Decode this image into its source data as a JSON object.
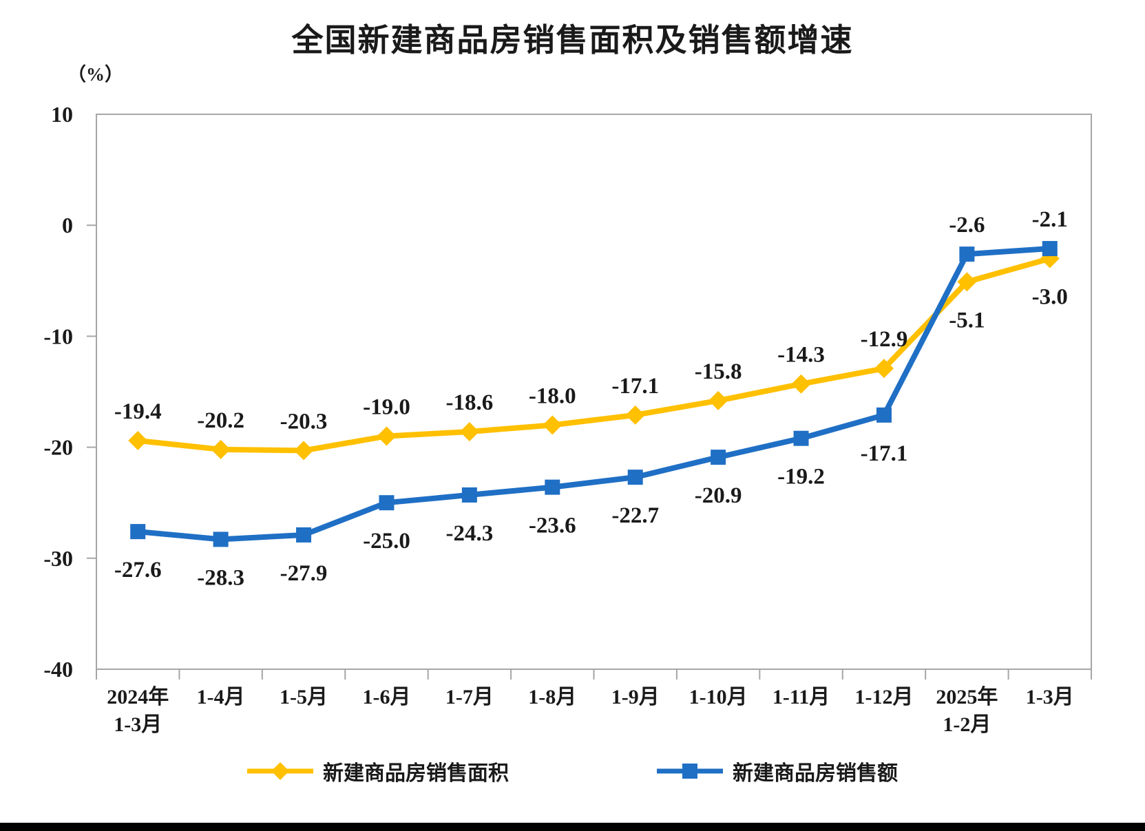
{
  "page": {
    "title": "全国新建商品房销售面积及销售额增速",
    "y_axis_unit": "（%）"
  },
  "chart_data": {
    "type": "line",
    "title": "全国新建商品房销售面积及销售额增速",
    "ylabel": "（%）",
    "xlabel": "",
    "ylim": [
      -40,
      10
    ],
    "yticks": [
      10,
      0,
      -10,
      -20,
      -30,
      -40
    ],
    "grid": false,
    "legend_position": "bottom",
    "axis_color": "#a6a6a6",
    "text_color": "#1a1a1a",
    "categories": [
      "2024年\n1-3月",
      "1-4月",
      "1-5月",
      "1-6月",
      "1-7月",
      "1-8月",
      "1-9月",
      "1-10月",
      "1-11月",
      "1-12月",
      "2025年\n1-2月",
      "1-3月"
    ],
    "series": [
      {
        "name": "新建商品房销售面积",
        "color": "#FFC000",
        "marker": "diamond",
        "values": [
          -19.4,
          -20.2,
          -20.3,
          -19.0,
          -18.6,
          -18.0,
          -17.1,
          -15.8,
          -14.3,
          -12.9,
          -5.1,
          -3.0
        ],
        "label_side_default": "above",
        "label_side_overrides": {
          "10": "below",
          "11": "below"
        }
      },
      {
        "name": "新建商品房销售额",
        "color": "#1F6FC5",
        "marker": "square",
        "values": [
          -27.6,
          -28.3,
          -27.9,
          -25.0,
          -24.3,
          -23.6,
          -22.7,
          -20.9,
          -19.2,
          -17.1,
          -2.6,
          -2.1
        ],
        "label_side_default": "below",
        "label_side_overrides": {
          "10": "above",
          "11": "above"
        }
      }
    ]
  }
}
